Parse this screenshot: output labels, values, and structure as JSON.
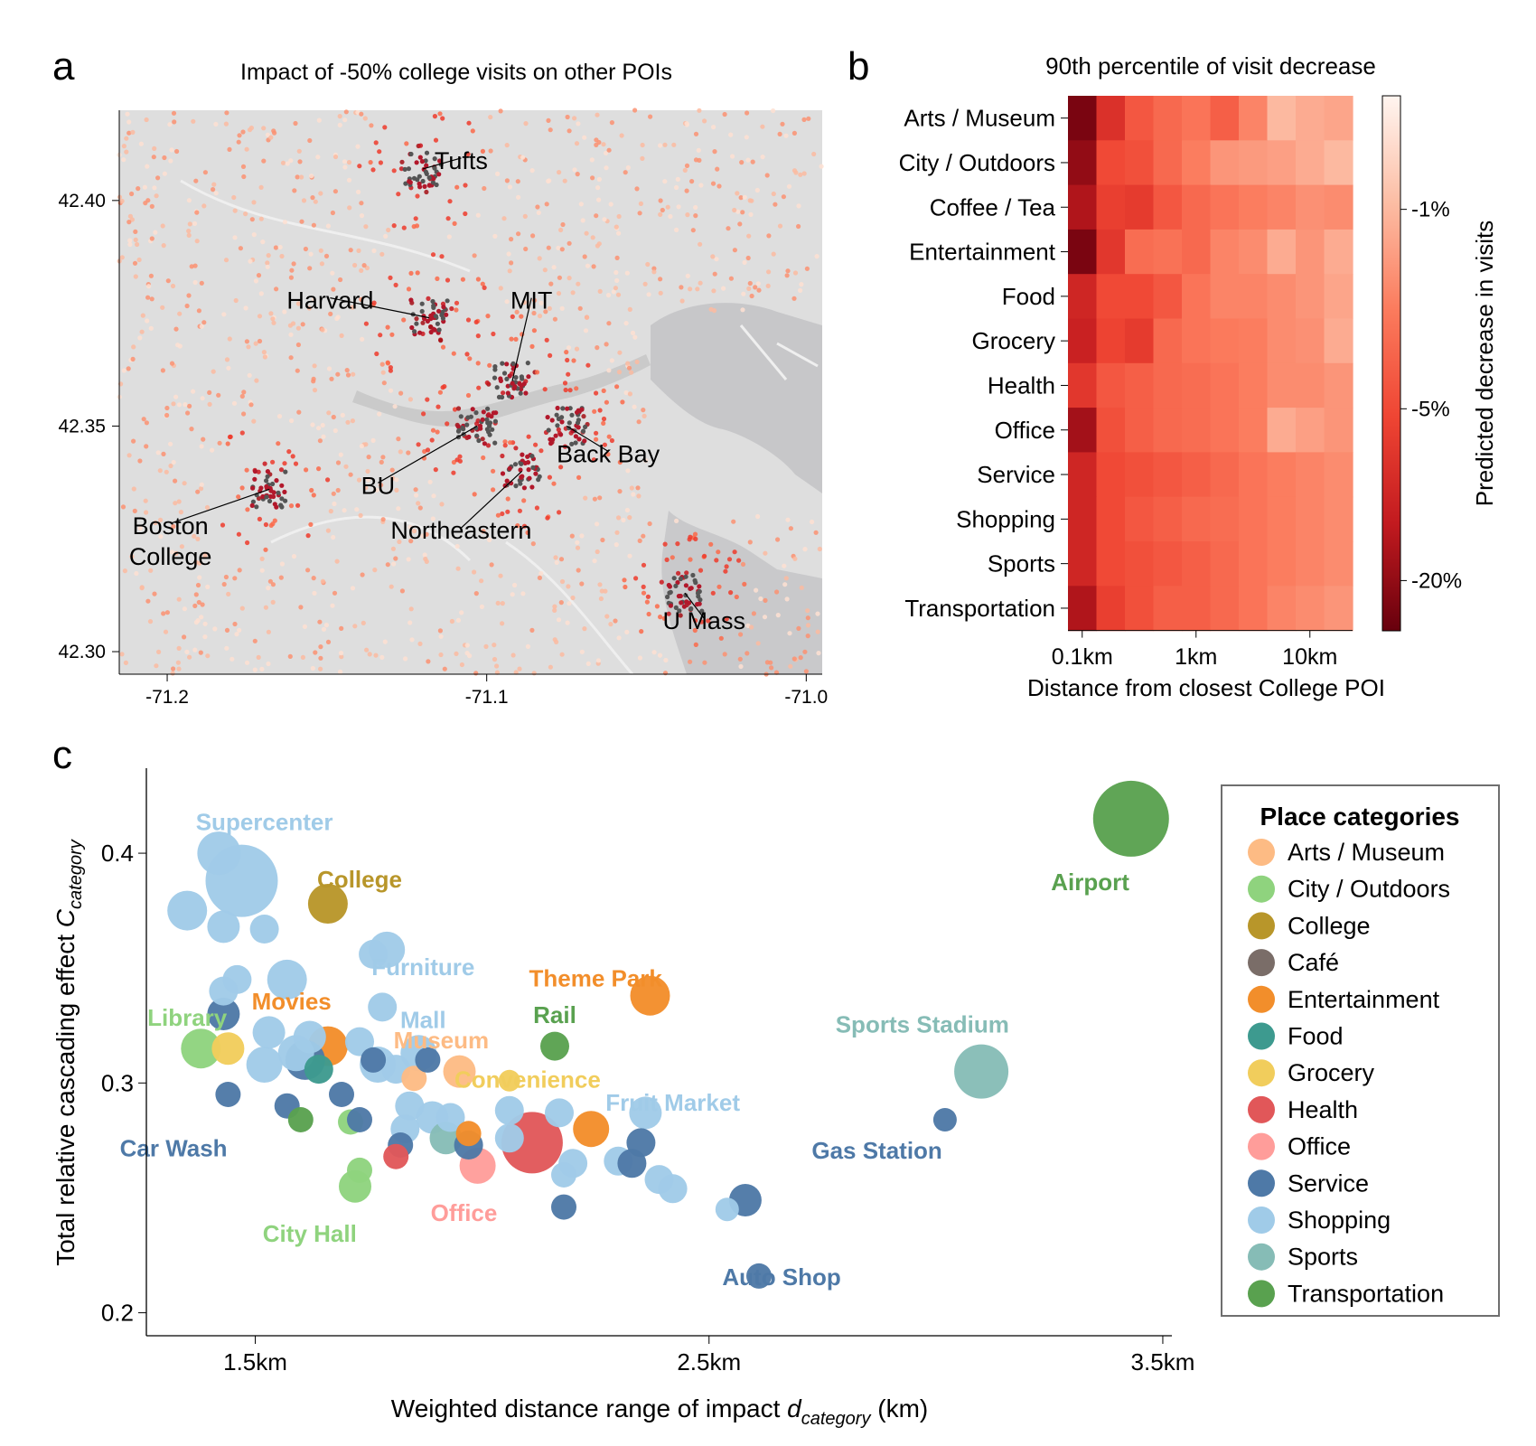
{
  "panel_labels": {
    "a": "a",
    "b": "b",
    "c": "c"
  },
  "colors": {
    "Arts / Museum": "#fdbb84",
    "City / Outdoors": "#8fd37e",
    "College": "#b8962a",
    "Café": "#7a6d68",
    "Entertainment": "#f28e2b",
    "Food": "#3d9a8f",
    "Grocery": "#f1cd5c",
    "Health": "#e15759",
    "Office": "#ff9d9a",
    "Service": "#4e79a7",
    "Shopping": "#a0cbe8",
    "Sports": "#86bcb6",
    "Transportation": "#59a14f"
  },
  "chart_data": [
    {
      "type": "scatter",
      "panel": "a",
      "title": "Impact of -50% college visits on other POIs",
      "xlim": [
        -71.215,
        -70.995
      ],
      "ylim": [
        42.295,
        42.42
      ],
      "xticks": [
        -71.2,
        -71.1,
        -71.0
      ],
      "xtick_labels": [
        "-71.2",
        "-71.1",
        "-71.0"
      ],
      "yticks": [
        42.3,
        42.35,
        42.4
      ],
      "ytick_labels": [
        "42.30",
        "42.35",
        "42.40"
      ],
      "places": [
        {
          "name": "Tufts",
          "lon": -71.12,
          "lat": 42.407,
          "label_lon": -71.108,
          "label_lat": 42.407
        },
        {
          "name": "Harvard",
          "lon": -71.118,
          "lat": 42.374,
          "label_lon": -71.149,
          "label_lat": 42.376
        },
        {
          "name": "MIT",
          "lon": -71.092,
          "lat": 42.36,
          "label_lon": -71.086,
          "label_lat": 42.376
        },
        {
          "name": "Back Bay",
          "lon": -71.075,
          "lat": 42.35,
          "label_lon": -71.062,
          "label_lat": 42.342
        },
        {
          "name": "BU",
          "lon": -71.103,
          "lat": 42.35,
          "label_lon": -71.134,
          "label_lat": 42.335
        },
        {
          "name": "Northeastern",
          "lon": -71.089,
          "lat": 42.34,
          "label_lon": -71.108,
          "label_lat": 42.325
        },
        {
          "name": "Boston\nCollege",
          "lon": -71.168,
          "lat": 42.336,
          "label_lon": -71.199,
          "label_lat": 42.326
        },
        {
          "name": "U Mass",
          "lon": -71.038,
          "lat": 42.313,
          "label_lon": -71.032,
          "label_lat": 42.305
        }
      ]
    },
    {
      "type": "heatmap",
      "panel": "b",
      "title": "90th percentile of visit decrease",
      "xlabel": "Distance from closest College POI",
      "xtick_labels": [
        "0.1km",
        "1km",
        "10km"
      ],
      "xtick_cols": [
        0.5,
        4.5,
        8.5
      ],
      "colorbar_label": "Predicted decrease in visits",
      "colorbar_ticks": [
        "-1%",
        "-5%",
        "-20%"
      ],
      "colorbar_tick_values": [
        1,
        5,
        20
      ],
      "colorbar_range": [
        0.4,
        30
      ],
      "rows": [
        "Arts / Museum",
        "City / Outdoors",
        "Coffee / Tea",
        "Entertainment",
        "Food",
        "Grocery",
        "Health",
        "Office",
        "Service",
        "Shopping",
        "Sports",
        "Transportation"
      ],
      "values": [
        [
          25,
          8,
          4,
          3,
          2.5,
          3.5,
          2,
          1,
          1.2,
          1.3
        ],
        [
          20,
          5,
          4.5,
          3,
          2.2,
          1.6,
          1.5,
          1.4,
          1.2,
          1
        ],
        [
          15,
          6,
          6.5,
          4,
          3,
          2.5,
          2.2,
          2,
          1.7,
          1.8
        ],
        [
          25,
          7,
          2.8,
          2.6,
          3,
          2,
          1.8,
          1.2,
          1.6,
          1.2
        ],
        [
          10,
          5,
          5,
          4,
          2.5,
          2,
          2,
          1.8,
          1.6,
          1.3
        ],
        [
          11,
          5.5,
          6.5,
          3,
          2.5,
          2.3,
          2.2,
          1.8,
          1.7,
          1.2
        ],
        [
          7,
          4,
          3.5,
          3,
          2.8,
          2.5,
          2.2,
          1.8,
          1.8,
          1.6
        ],
        [
          17,
          4.5,
          3.5,
          3,
          2.8,
          2.5,
          2.2,
          1.2,
          1.4,
          1.6
        ],
        [
          10,
          5,
          4.5,
          4,
          3.5,
          3,
          2.5,
          2.2,
          2,
          1.8
        ],
        [
          10,
          5,
          4,
          3.5,
          3,
          2.8,
          2.5,
          2.2,
          2,
          1.8
        ],
        [
          10,
          5,
          4.5,
          4,
          3.5,
          3,
          2.5,
          2.2,
          2,
          1.8
        ],
        [
          15,
          6,
          4.5,
          3.5,
          3.5,
          3,
          2.5,
          2,
          1.8,
          1.6
        ]
      ]
    },
    {
      "type": "scatter",
      "panel": "c",
      "xlabel": "Weighted distance range of impact",
      "xlabel_symbol": "d",
      "xlabel_subscript": "category",
      "xlabel_unit": "(km)",
      "ylabel": "Total relative cascading effect",
      "ylabel_symbol": "C",
      "ylabel_subscript": "category",
      "xlim": [
        1.26,
        3.52
      ],
      "ylim": [
        0.19,
        0.437
      ],
      "xticks": [
        1.5,
        2.5,
        3.5
      ],
      "xtick_labels": [
        "1.5km",
        "2.5km",
        "3.5km"
      ],
      "yticks": [
        0.2,
        0.3,
        0.4
      ],
      "ytick_labels": [
        "0.2",
        "0.3",
        "0.4"
      ],
      "legend_title": "Place categories",
      "legend": [
        "Arts / Museum",
        "City / Outdoors",
        "College",
        "Café",
        "Entertainment",
        "Food",
        "Grocery",
        "Health",
        "Office",
        "Service",
        "Shopping",
        "Sports",
        "Transportation"
      ],
      "points": [
        {
          "x": 1.42,
          "y": 0.4,
          "s": 24,
          "c": "Shopping"
        },
        {
          "x": 1.47,
          "y": 0.388,
          "s": 40,
          "c": "Shopping"
        },
        {
          "x": 1.35,
          "y": 0.375,
          "s": 22,
          "c": "Shopping"
        },
        {
          "x": 1.43,
          "y": 0.368,
          "s": 18,
          "c": "Shopping"
        },
        {
          "x": 1.52,
          "y": 0.367,
          "s": 16,
          "c": "Shopping"
        },
        {
          "x": 1.76,
          "y": 0.356,
          "s": 16,
          "c": "Shopping"
        },
        {
          "x": 1.79,
          "y": 0.358,
          "s": 20,
          "c": "Shopping"
        },
        {
          "x": 1.46,
          "y": 0.345,
          "s": 16,
          "c": "Shopping"
        },
        {
          "x": 1.57,
          "y": 0.345,
          "s": 22,
          "c": "Shopping"
        },
        {
          "x": 1.43,
          "y": 0.34,
          "s": 16,
          "c": "Shopping"
        },
        {
          "x": 1.78,
          "y": 0.333,
          "s": 16,
          "c": "Shopping"
        },
        {
          "x": 1.62,
          "y": 0.32,
          "s": 18,
          "c": "Shopping"
        },
        {
          "x": 1.53,
          "y": 0.322,
          "s": 18,
          "c": "Shopping"
        },
        {
          "x": 1.59,
          "y": 0.313,
          "s": 20,
          "c": "Shopping"
        },
        {
          "x": 1.73,
          "y": 0.318,
          "s": 16,
          "c": "Shopping"
        },
        {
          "x": 1.77,
          "y": 0.308,
          "s": 20,
          "c": "Shopping"
        },
        {
          "x": 1.81,
          "y": 0.306,
          "s": 16,
          "c": "Shopping"
        },
        {
          "x": 1.86,
          "y": 0.313,
          "s": 20,
          "c": "Shopping"
        },
        {
          "x": 1.52,
          "y": 0.308,
          "s": 20,
          "c": "Shopping"
        },
        {
          "x": 1.84,
          "y": 0.29,
          "s": 16,
          "c": "Shopping"
        },
        {
          "x": 1.89,
          "y": 0.285,
          "s": 18,
          "c": "Shopping"
        },
        {
          "x": 1.83,
          "y": 0.28,
          "s": 16,
          "c": "Shopping"
        },
        {
          "x": 1.93,
          "y": 0.285,
          "s": 16,
          "c": "Shopping"
        },
        {
          "x": 2.06,
          "y": 0.288,
          "s": 16,
          "c": "Shopping"
        },
        {
          "x": 2.06,
          "y": 0.276,
          "s": 16,
          "c": "Shopping"
        },
        {
          "x": 2.17,
          "y": 0.287,
          "s": 16,
          "c": "Shopping"
        },
        {
          "x": 2.36,
          "y": 0.287,
          "s": 18,
          "c": "Shopping"
        },
        {
          "x": 2.3,
          "y": 0.266,
          "s": 16,
          "c": "Shopping"
        },
        {
          "x": 2.2,
          "y": 0.265,
          "s": 16,
          "c": "Shopping"
        },
        {
          "x": 2.18,
          "y": 0.26,
          "s": 14,
          "c": "Shopping"
        },
        {
          "x": 2.39,
          "y": 0.258,
          "s": 16,
          "c": "Shopping"
        },
        {
          "x": 2.42,
          "y": 0.254,
          "s": 16,
          "c": "Shopping"
        },
        {
          "x": 2.54,
          "y": 0.245,
          "s": 13,
          "c": "Shopping"
        },
        {
          "x": 1.66,
          "y": 0.378,
          "s": 22,
          "c": "College"
        },
        {
          "x": 1.66,
          "y": 0.316,
          "s": 22,
          "c": "Entertainment"
        },
        {
          "x": 2.24,
          "y": 0.28,
          "s": 20,
          "c": "Entertainment"
        },
        {
          "x": 1.97,
          "y": 0.278,
          "s": 14,
          "c": "Entertainment"
        },
        {
          "x": 2.37,
          "y": 0.338,
          "s": 22,
          "c": "Entertainment"
        },
        {
          "x": 1.38,
          "y": 0.315,
          "s": 22,
          "c": "City / Outdoors"
        },
        {
          "x": 1.71,
          "y": 0.283,
          "s": 14,
          "c": "City / Outdoors"
        },
        {
          "x": 1.73,
          "y": 0.262,
          "s": 14,
          "c": "City / Outdoors"
        },
        {
          "x": 1.72,
          "y": 0.255,
          "s": 18,
          "c": "City / Outdoors"
        },
        {
          "x": 1.44,
          "y": 0.315,
          "s": 18,
          "c": "Grocery"
        },
        {
          "x": 2.06,
          "y": 0.301,
          "s": 12,
          "c": "Grocery"
        },
        {
          "x": 1.95,
          "y": 0.305,
          "s": 18,
          "c": "Arts / Museum"
        },
        {
          "x": 1.85,
          "y": 0.302,
          "s": 14,
          "c": "Arts / Museum"
        },
        {
          "x": 1.43,
          "y": 0.33,
          "s": 18,
          "c": "Service"
        },
        {
          "x": 1.61,
          "y": 0.31,
          "s": 22,
          "c": "Service"
        },
        {
          "x": 1.76,
          "y": 0.31,
          "s": 14,
          "c": "Service"
        },
        {
          "x": 1.88,
          "y": 0.31,
          "s": 14,
          "c": "Service"
        },
        {
          "x": 1.44,
          "y": 0.295,
          "s": 14,
          "c": "Service"
        },
        {
          "x": 1.57,
          "y": 0.29,
          "s": 14,
          "c": "Service"
        },
        {
          "x": 1.69,
          "y": 0.295,
          "s": 14,
          "c": "Service"
        },
        {
          "x": 1.73,
          "y": 0.284,
          "s": 14,
          "c": "Service"
        },
        {
          "x": 1.82,
          "y": 0.273,
          "s": 14,
          "c": "Service"
        },
        {
          "x": 1.97,
          "y": 0.273,
          "s": 16,
          "c": "Service"
        },
        {
          "x": 2.33,
          "y": 0.265,
          "s": 16,
          "c": "Service"
        },
        {
          "x": 2.35,
          "y": 0.274,
          "s": 16,
          "c": "Service"
        },
        {
          "x": 2.18,
          "y": 0.246,
          "s": 14,
          "c": "Service"
        },
        {
          "x": 2.58,
          "y": 0.249,
          "s": 18,
          "c": "Service"
        },
        {
          "x": 2.61,
          "y": 0.216,
          "s": 14,
          "c": "Service"
        },
        {
          "x": 3.02,
          "y": 0.284,
          "s": 13,
          "c": "Service"
        },
        {
          "x": 1.64,
          "y": 0.306,
          "s": 16,
          "c": "Food"
        },
        {
          "x": 1.92,
          "y": 0.276,
          "s": 18,
          "c": "Sports"
        },
        {
          "x": 3.1,
          "y": 0.305,
          "s": 30,
          "c": "Sports"
        },
        {
          "x": 1.81,
          "y": 0.268,
          "s": 14,
          "c": "Health"
        },
        {
          "x": 2.11,
          "y": 0.274,
          "s": 34,
          "c": "Health"
        },
        {
          "x": 1.99,
          "y": 0.264,
          "s": 20,
          "c": "Office"
        },
        {
          "x": 1.6,
          "y": 0.284,
          "s": 14,
          "c": "Transportation"
        },
        {
          "x": 2.16,
          "y": 0.316,
          "s": 16,
          "c": "Transportation"
        },
        {
          "x": 3.43,
          "y": 0.415,
          "s": 42,
          "c": "Transportation"
        }
      ],
      "annotations": [
        {
          "text": "Supercenter",
          "x": 1.52,
          "y": 0.41,
          "c": "Shopping"
        },
        {
          "text": "College",
          "x": 1.73,
          "y": 0.385,
          "c": "College"
        },
        {
          "text": "Furniture",
          "x": 1.87,
          "y": 0.347,
          "c": "Shopping"
        },
        {
          "text": "Theme Park",
          "x": 2.25,
          "y": 0.342,
          "c": "Entertainment"
        },
        {
          "text": "Airport",
          "x": 3.34,
          "y": 0.384,
          "c": "Transportation"
        },
        {
          "text": "Library",
          "x": 1.35,
          "y": 0.325,
          "c": "City / Outdoors"
        },
        {
          "text": "Movies",
          "x": 1.58,
          "y": 0.332,
          "c": "Entertainment"
        },
        {
          "text": "Mall",
          "x": 1.87,
          "y": 0.324,
          "c": "Shopping"
        },
        {
          "text": "Rail",
          "x": 2.16,
          "y": 0.326,
          "c": "Transportation"
        },
        {
          "text": "Museum",
          "x": 1.91,
          "y": 0.315,
          "c": "Arts / Museum"
        },
        {
          "text": "Sports Stadium",
          "x": 2.97,
          "y": 0.322,
          "c": "Sports"
        },
        {
          "text": "Convenience",
          "x": 2.1,
          "y": 0.298,
          "c": "Grocery"
        },
        {
          "text": "Fruit Market",
          "x": 2.42,
          "y": 0.288,
          "c": "Shopping"
        },
        {
          "text": "Car Wash",
          "x": 1.32,
          "y": 0.268,
          "c": "Service"
        },
        {
          "text": "Gas Station",
          "x": 2.87,
          "y": 0.267,
          "c": "Service"
        },
        {
          "text": "Office",
          "x": 1.96,
          "y": 0.24,
          "c": "Office"
        },
        {
          "text": "City Hall",
          "x": 1.62,
          "y": 0.231,
          "c": "City / Outdoors"
        },
        {
          "text": "Auto Shop",
          "x": 2.66,
          "y": 0.212,
          "c": "Service"
        }
      ]
    }
  ]
}
